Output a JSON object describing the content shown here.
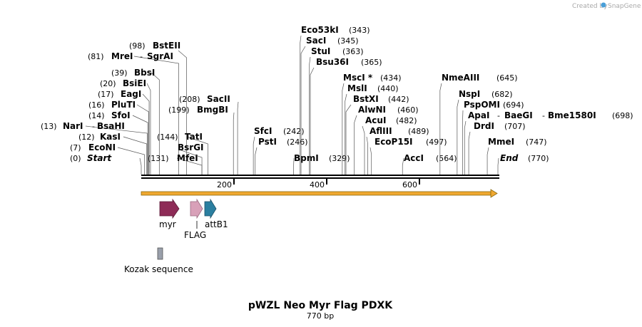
{
  "credit": {
    "prefix": "Created by",
    "brand": "SnapGene"
  },
  "title": "pWZL Neo Myr Flag PDXK",
  "length_label": "770 bp",
  "sequence_length": 770,
  "ticks": [
    {
      "label": "200",
      "bp": 200
    },
    {
      "label": "400",
      "bp": 400
    },
    {
      "label": "600",
      "bp": 600
    }
  ],
  "sites": [
    {
      "name": "Start",
      "pos": "(0)",
      "bp": 0,
      "italic": true
    },
    {
      "name": "EcoNI",
      "pos": "(7)",
      "bp": 7
    },
    {
      "name": "KasI",
      "pos": "(12)",
      "bp": 12
    },
    {
      "name": "NarI",
      "pos": "(13)",
      "bp": 13,
      "extra": "BsaHI"
    },
    {
      "name": "SfoI",
      "pos": "(14)",
      "bp": 14
    },
    {
      "name": "PluTI",
      "pos": "(16)",
      "bp": 16
    },
    {
      "name": "EagI",
      "pos": "(17)",
      "bp": 17
    },
    {
      "name": "BsiEI",
      "pos": "(20)",
      "bp": 20
    },
    {
      "name": "BbsI",
      "pos": "(39)",
      "bp": 39
    },
    {
      "name": "MreI",
      "pos": "(81)",
      "bp": 81,
      "extra": "SgrAI"
    },
    {
      "name": "BstEII",
      "pos": "(98)",
      "bp": 98
    },
    {
      "name": "MfeI",
      "pos": "(131)",
      "bp": 131
    },
    {
      "name": "BsrGI",
      "pos": "",
      "bp": 131
    },
    {
      "name": "TatI",
      "pos": "(144)",
      "bp": 144
    },
    {
      "name": "BmgBI",
      "pos": "(199)",
      "bp": 199
    },
    {
      "name": "SacII",
      "pos": "(208)",
      "bp": 208
    },
    {
      "name": "SfcI",
      "pos": "(242)",
      "bp": 242
    },
    {
      "name": "PstI",
      "pos": "(246)",
      "bp": 246
    },
    {
      "name": "BpmI",
      "pos": "(329)",
      "bp": 329
    },
    {
      "name": "Eco53kI",
      "pos": "(343)",
      "bp": 343
    },
    {
      "name": "SacI",
      "pos": "(345)",
      "bp": 345
    },
    {
      "name": "StuI",
      "pos": "(363)",
      "bp": 363
    },
    {
      "name": "Bsu36I",
      "pos": "(365)",
      "bp": 365
    },
    {
      "name": "MscI *",
      "pos": "(434)",
      "bp": 434
    },
    {
      "name": "MslI",
      "pos": "(440)",
      "bp": 440
    },
    {
      "name": "BstXI",
      "pos": "(442)",
      "bp": 442
    },
    {
      "name": "AlwNI",
      "pos": "(460)",
      "bp": 460
    },
    {
      "name": "AcuI",
      "pos": "(482)",
      "bp": 482
    },
    {
      "name": "AflIII",
      "pos": "(489)",
      "bp": 489
    },
    {
      "name": "EcoP15I",
      "pos": "(497)",
      "bp": 497
    },
    {
      "name": "AccI",
      "pos": "(564)",
      "bp": 564
    },
    {
      "name": "NmeAIII",
      "pos": "(645)",
      "bp": 645
    },
    {
      "name": "NspI",
      "pos": "(682)",
      "bp": 682
    },
    {
      "name": "PspOMI",
      "pos": "(694)",
      "bp": 694
    },
    {
      "name": "ApaI",
      "pos": "(698)",
      "bp": 698,
      "extra": "BaeGI",
      "extra2": "Bme1580I"
    },
    {
      "name": "DrdI",
      "pos": "(707)",
      "bp": 707
    },
    {
      "name": "MmeI",
      "pos": "(747)",
      "bp": 747
    },
    {
      "name": "End",
      "pos": "(770)",
      "bp": 770,
      "italic": true
    }
  ],
  "features": [
    {
      "name": "myr",
      "color": "#8e2b57"
    },
    {
      "name": "FLAG",
      "color": "#d8a0b8"
    },
    {
      "name": "attB1",
      "color": "#2b7fa0"
    },
    {
      "name": "Kozak sequence",
      "color": "#9aa0ab"
    }
  ],
  "colors": {
    "backbone": "#000000",
    "orf": "#f0a830",
    "orf_edge": "#8a6a10"
  }
}
